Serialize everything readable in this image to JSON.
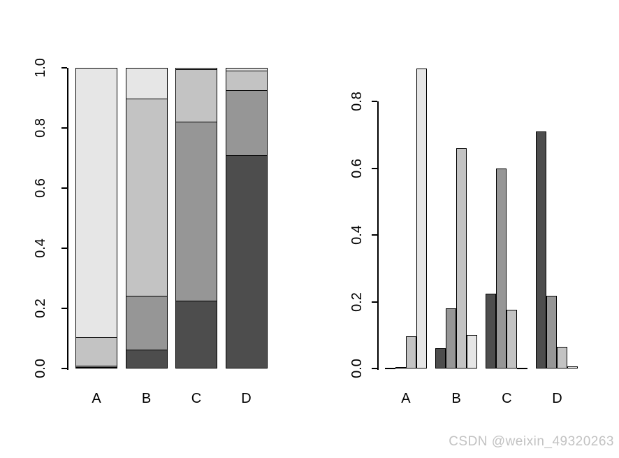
{
  "figure": {
    "background": "#ffffff",
    "bar_outline_color": "#000000",
    "axis_color": "#000000"
  },
  "watermark": {
    "text": "CSDN @weixin_49320263",
    "color": "#c2c2c2"
  },
  "chart_data": [
    {
      "type": "bar",
      "subtype": "stacked",
      "title": "",
      "xlabel": "",
      "ylabel": "",
      "categories": [
        "A",
        "B",
        "C",
        "D"
      ],
      "series": [
        {
          "name": "shade-darkest",
          "color": "#4D4D4D",
          "values": [
            0.002,
            0.06,
            0.225,
            0.71
          ]
        },
        {
          "name": "shade-dark",
          "color": "#969696",
          "values": [
            0.004,
            0.18,
            0.598,
            0.218
          ]
        },
        {
          "name": "shade-light",
          "color": "#C3C3C3",
          "values": [
            0.096,
            0.66,
            0.175,
            0.065
          ]
        },
        {
          "name": "shade-lightest",
          "color": "#E6E6E6",
          "values": [
            0.898,
            0.1,
            0.002,
            0.007
          ]
        }
      ],
      "ylim": [
        0,
        1.0
      ],
      "yticks": [
        "0.0",
        "0.2",
        "0.4",
        "0.6",
        "0.8",
        "1.0"
      ],
      "grid": false,
      "legend": false
    },
    {
      "type": "bar",
      "subtype": "grouped",
      "title": "",
      "xlabel": "",
      "ylabel": "",
      "categories": [
        "A",
        "B",
        "C",
        "D"
      ],
      "series": [
        {
          "name": "shade-darkest",
          "color": "#4D4D4D",
          "values": [
            0.002,
            0.06,
            0.225,
            0.71
          ]
        },
        {
          "name": "shade-dark",
          "color": "#969696",
          "values": [
            0.004,
            0.18,
            0.598,
            0.218
          ]
        },
        {
          "name": "shade-light",
          "color": "#C3C3C3",
          "values": [
            0.096,
            0.66,
            0.175,
            0.065
          ]
        },
        {
          "name": "shade-lightest",
          "color": "#E6E6E6",
          "values": [
            0.898,
            0.1,
            0.002,
            0.007
          ]
        }
      ],
      "ylim": [
        0,
        0.9
      ],
      "yticks": [
        "0.0",
        "0.2",
        "0.4",
        "0.6",
        "0.8"
      ],
      "grid": false,
      "legend": false
    }
  ]
}
